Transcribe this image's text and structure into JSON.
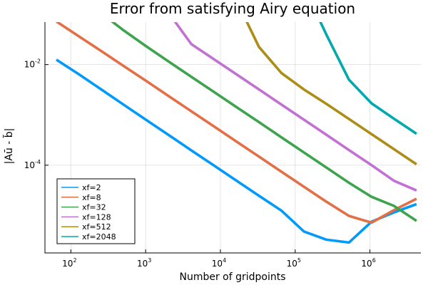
{
  "chart_data": {
    "type": "line",
    "title": "Error from satisfying Airy equation",
    "xlabel": "Number of gridpoints",
    "ylabel": "|Aū - b̄|",
    "xscale": "log",
    "yscale": "log",
    "xlim": [
      45,
      4800000
    ],
    "ylim": [
      1.8e-06,
      0.07
    ],
    "grid": true,
    "legend_position": "bottom-left",
    "x_ticks": [
      {
        "value": 100,
        "base": "10",
        "exp": "2"
      },
      {
        "value": 1000,
        "base": "10",
        "exp": "3"
      },
      {
        "value": 10000,
        "base": "10",
        "exp": "4"
      },
      {
        "value": 100000,
        "base": "10",
        "exp": "5"
      },
      {
        "value": 1000000,
        "base": "10",
        "exp": "6"
      }
    ],
    "y_ticks": [
      {
        "value": 0.0001,
        "base": "10",
        "exp": "-4"
      },
      {
        "value": 0.01,
        "base": "10",
        "exp": "-2"
      }
    ],
    "series": [
      {
        "name": "xf=2",
        "color": "#009AFA",
        "x": [
          64,
          128,
          256,
          512,
          1024,
          2048,
          4096,
          8192,
          16384,
          32768,
          65536,
          131072,
          262144,
          524288,
          1048576,
          2097152,
          4194304
        ],
        "y": [
          0.0125,
          0.0064,
          0.0032,
          0.00158,
          0.00079,
          0.000395,
          0.000197,
          9.88e-05,
          4.94e-05,
          2.47e-05,
          1.25e-05,
          4.8e-06,
          3.3e-06,
          2.9e-06,
          7.5e-06,
          1.15e-05,
          1.68e-05
        ]
      },
      {
        "name": "xf=8",
        "color": "#E26F46",
        "x": [
          64,
          128,
          256,
          512,
          1024,
          2048,
          4096,
          8192,
          16384,
          32768,
          65536,
          131072,
          262144,
          524288,
          1048576,
          2097152,
          4194304
        ],
        "y": [
          0.072,
          0.0365,
          0.0185,
          0.0093,
          0.0047,
          0.00235,
          0.00118,
          0.00059,
          0.000296,
          0.000148,
          7.42e-05,
          3.73e-05,
          1.87e-05,
          9.8e-06,
          7.2e-06,
          1.28e-05,
          2.15e-05
        ]
      },
      {
        "name": "xf=32",
        "color": "#3DA44D",
        "x": [
          256,
          512,
          1024,
          2048,
          4096,
          8192,
          16384,
          32768,
          65536,
          131072,
          262144,
          524288,
          1048576,
          2097152,
          4194304
        ],
        "y": [
          0.105,
          0.0475,
          0.023,
          0.0114,
          0.0057,
          0.00286,
          0.00143,
          0.000717,
          0.000358,
          0.000179,
          8.95e-05,
          4.48e-05,
          2.35e-05,
          1.55e-05,
          7.8e-06
        ]
      },
      {
        "name": "xf=128",
        "color": "#C271D2",
        "x": [
          2048,
          4096,
          8192,
          16384,
          32768,
          65536,
          131072,
          262144,
          524288,
          1048576,
          2097152,
          4194304
        ],
        "y": [
          0.105,
          0.0255,
          0.0128,
          0.0064,
          0.00321,
          0.0016,
          0.000801,
          0.0004,
          0.0002,
          0.0001,
          4.9e-05,
          3.15e-05
        ]
      },
      {
        "name": "xf=512",
        "color": "#AC8D18",
        "x": [
          16384,
          32768,
          65536,
          131072,
          262144,
          524288,
          1048576,
          2097152,
          4194304
        ],
        "y": [
          0.19,
          0.0225,
          0.0068,
          0.0032,
          0.00165,
          0.00083,
          0.000415,
          0.000208,
          0.000104
        ]
      },
      {
        "name": "xf=2048",
        "color": "#00A9AD",
        "x": [
          131072,
          262144,
          524288,
          1048576,
          2097152,
          4194304
        ],
        "y": [
          0.35,
          0.039,
          0.005,
          0.0017,
          0.00084,
          0.00042
        ]
      }
    ]
  }
}
